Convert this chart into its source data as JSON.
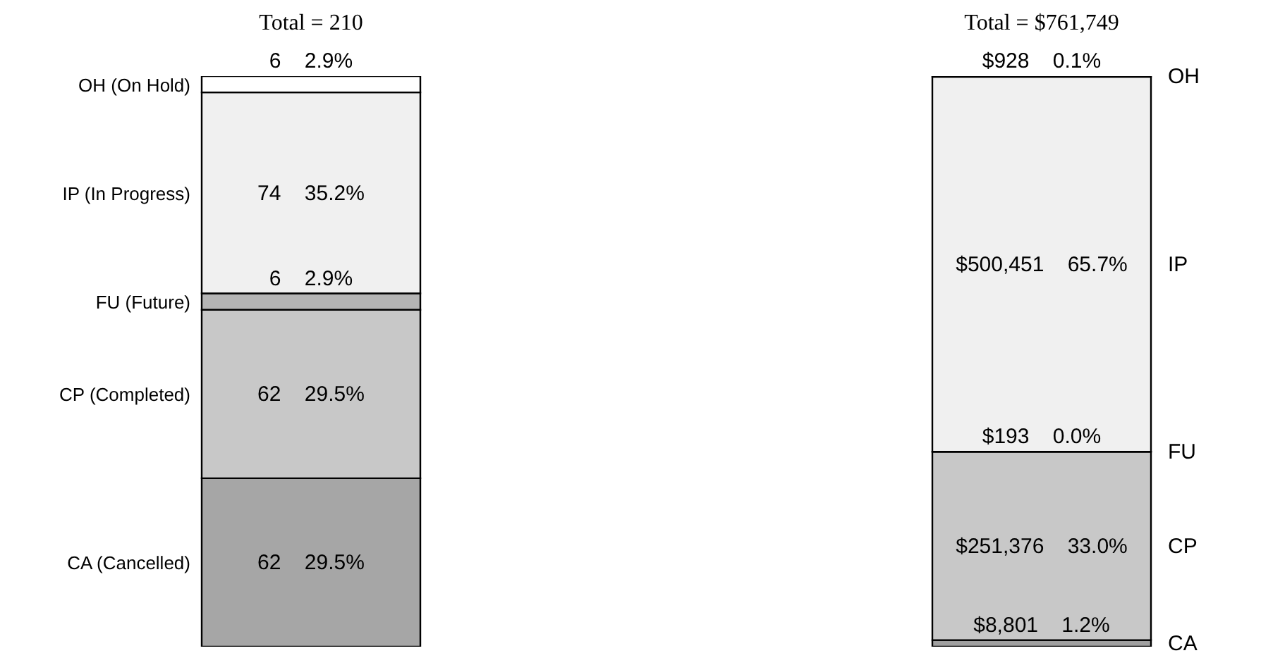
{
  "chart_data": [
    {
      "type": "bar",
      "stacked": true,
      "title": "Total = 210",
      "categories": [
        null
      ],
      "legend": "left",
      "series": [
        {
          "name": "CA (Cancelled)",
          "color": "#a6a6a6",
          "values": [
            62
          ],
          "value_labels": [
            "62    29.5%"
          ]
        },
        {
          "name": "CP (Completed)",
          "color": "#c8c8c8",
          "values": [
            62
          ],
          "value_labels": [
            "62    29.5%"
          ]
        },
        {
          "name": "FU (Future)",
          "color": "#b4b4b4",
          "values": [
            6
          ],
          "value_labels": [
            "6    2.9%"
          ]
        },
        {
          "name": "IP (In Progress)",
          "color": "#f0f0f0",
          "values": [
            74
          ],
          "value_labels": [
            "74    35.2%"
          ]
        },
        {
          "name": "OH (On Hold)",
          "color": "#ffffff",
          "values": [
            6
          ],
          "value_labels": [
            "6    2.9%"
          ]
        }
      ]
    },
    {
      "type": "bar",
      "stacked": true,
      "title": "Total = $761,749",
      "categories": [
        null
      ],
      "legend": "right",
      "series": [
        {
          "name": "CA",
          "color": "#a0a0a0",
          "values": [
            8801
          ],
          "value_labels": [
            "$8,801    1.2%"
          ]
        },
        {
          "name": "CP",
          "color": "#c8c8c8",
          "values": [
            251376
          ],
          "value_labels": [
            "$251,376    33.0%"
          ]
        },
        {
          "name": "FU",
          "color": "#b4b4b4",
          "values": [
            193
          ],
          "value_labels": [
            "$193    0.0%"
          ]
        },
        {
          "name": "IP",
          "color": "#f0f0f0",
          "values": [
            500451
          ],
          "value_labels": [
            "$500,451    65.7%"
          ]
        },
        {
          "name": "OH",
          "color": "#ffffff",
          "values": [
            928
          ],
          "value_labels": [
            "$928    0.1%"
          ]
        }
      ]
    }
  ]
}
